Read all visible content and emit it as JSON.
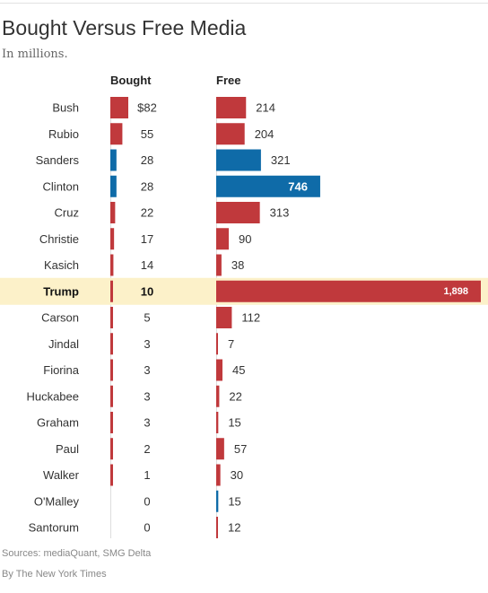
{
  "title": "Bought Versus Free Media",
  "subtitle": "In millions.",
  "headers": {
    "bought": "Bought",
    "free": "Free"
  },
  "sources": "Sources: mediaQuant, SMG Delta",
  "byline": "By The New York Times",
  "colors": {
    "republican": "#c0393c",
    "democrat": "#0f6ba8",
    "highlight": "#fcf1c9",
    "axis": "#dddddd"
  },
  "chart_data": {
    "type": "bar",
    "categories": [
      "Bush",
      "Rubio",
      "Sanders",
      "Clinton",
      "Cruz",
      "Christie",
      "Kasich",
      "Trump",
      "Carson",
      "Jindal",
      "Fiorina",
      "Huckabee",
      "Graham",
      "Paul",
      "Walker",
      "O'Malley",
      "Santorum"
    ],
    "party": [
      "R",
      "R",
      "D",
      "D",
      "R",
      "R",
      "R",
      "R",
      "R",
      "R",
      "R",
      "R",
      "R",
      "R",
      "R",
      "D",
      "R"
    ],
    "highlight": "Trump",
    "series": [
      {
        "name": "Bought",
        "values": [
          82,
          55,
          28,
          28,
          22,
          17,
          14,
          10,
          5,
          3,
          3,
          3,
          3,
          2,
          1,
          0,
          0
        ],
        "labels": [
          "$82",
          "55",
          "28",
          "28",
          "22",
          "17",
          "14",
          "10",
          "5",
          "3",
          "3",
          "3",
          "3",
          "2",
          "1",
          "0",
          "0"
        ]
      },
      {
        "name": "Free",
        "values": [
          214,
          204,
          321,
          746,
          313,
          90,
          38,
          1898,
          112,
          7,
          45,
          22,
          15,
          57,
          30,
          15,
          12
        ],
        "labels": [
          "214",
          "204",
          "321",
          "746",
          "313",
          "90",
          "38",
          "1,898",
          "112",
          "7",
          "45",
          "22",
          "15",
          "57",
          "30",
          "15",
          "12"
        ]
      }
    ]
  }
}
